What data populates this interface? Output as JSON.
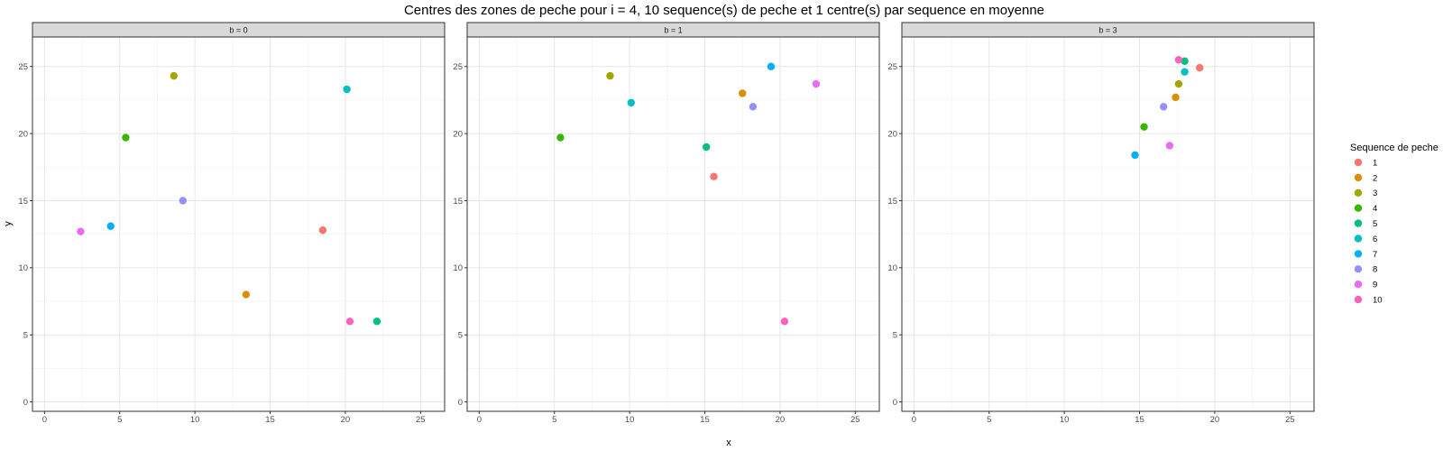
{
  "chart_data": {
    "type": "scatter",
    "title": "Centres des zones de peche pour i = 4, 10 sequence(s) de peche et 1 centre(s) par sequence en moyenne",
    "xlabel": "x",
    "ylabel": "y",
    "xlim": [
      -0.8,
      26.6
    ],
    "ylim": [
      -0.7,
      27.2
    ],
    "x_ticks": [
      0,
      5,
      10,
      15,
      20,
      25
    ],
    "y_ticks": [
      0,
      5,
      10,
      15,
      20,
      25
    ],
    "grid": true,
    "legend": {
      "title": "Sequence de peche",
      "position": "right",
      "entries": [
        {
          "label": "1",
          "color": "#F8766D"
        },
        {
          "label": "2",
          "color": "#D89000"
        },
        {
          "label": "3",
          "color": "#A3A500"
        },
        {
          "label": "4",
          "color": "#39B600"
        },
        {
          "label": "5",
          "color": "#00BF7D"
        },
        {
          "label": "6",
          "color": "#00BFC4"
        },
        {
          "label": "7",
          "color": "#00B0F6"
        },
        {
          "label": "8",
          "color": "#9590FF"
        },
        {
          "label": "9",
          "color": "#E76BF3"
        },
        {
          "label": "10",
          "color": "#FF62BC"
        }
      ]
    },
    "panels": [
      {
        "strip": "b = 0",
        "points": [
          {
            "seq": "1",
            "x": 18.5,
            "y": 12.8
          },
          {
            "seq": "2",
            "x": 13.4,
            "y": 8.0
          },
          {
            "seq": "3",
            "x": 8.6,
            "y": 24.3
          },
          {
            "seq": "4",
            "x": 5.4,
            "y": 19.7
          },
          {
            "seq": "5",
            "x": 22.1,
            "y": 6.0
          },
          {
            "seq": "6",
            "x": 20.1,
            "y": 23.3
          },
          {
            "seq": "7",
            "x": 4.4,
            "y": 13.1
          },
          {
            "seq": "8",
            "x": 9.2,
            "y": 15.0
          },
          {
            "seq": "9",
            "x": 2.4,
            "y": 12.7
          },
          {
            "seq": "10",
            "x": 20.3,
            "y": 6.0
          }
        ]
      },
      {
        "strip": "b = 1",
        "points": [
          {
            "seq": "1",
            "x": 15.6,
            "y": 16.8
          },
          {
            "seq": "2",
            "x": 17.5,
            "y": 23.0
          },
          {
            "seq": "3",
            "x": 8.7,
            "y": 24.3
          },
          {
            "seq": "4",
            "x": 5.4,
            "y": 19.7
          },
          {
            "seq": "5",
            "x": 15.1,
            "y": 19.0
          },
          {
            "seq": "6",
            "x": 10.1,
            "y": 22.3
          },
          {
            "seq": "7",
            "x": 19.4,
            "y": 25.0
          },
          {
            "seq": "8",
            "x": 18.2,
            "y": 22.0
          },
          {
            "seq": "9",
            "x": 22.4,
            "y": 23.7
          },
          {
            "seq": "10",
            "x": 20.3,
            "y": 6.0
          }
        ]
      },
      {
        "strip": "b = 3",
        "points": [
          {
            "seq": "1",
            "x": 19.0,
            "y": 24.9
          },
          {
            "seq": "2",
            "x": 17.4,
            "y": 22.7
          },
          {
            "seq": "3",
            "x": 17.6,
            "y": 23.7
          },
          {
            "seq": "4",
            "x": 15.3,
            "y": 20.5
          },
          {
            "seq": "5",
            "x": 18.0,
            "y": 25.4
          },
          {
            "seq": "6",
            "x": 18.0,
            "y": 24.6
          },
          {
            "seq": "7",
            "x": 14.7,
            "y": 18.4
          },
          {
            "seq": "8",
            "x": 16.6,
            "y": 22.0
          },
          {
            "seq": "9",
            "x": 17.0,
            "y": 19.1
          },
          {
            "seq": "10",
            "x": 17.6,
            "y": 25.5
          }
        ]
      }
    ]
  }
}
